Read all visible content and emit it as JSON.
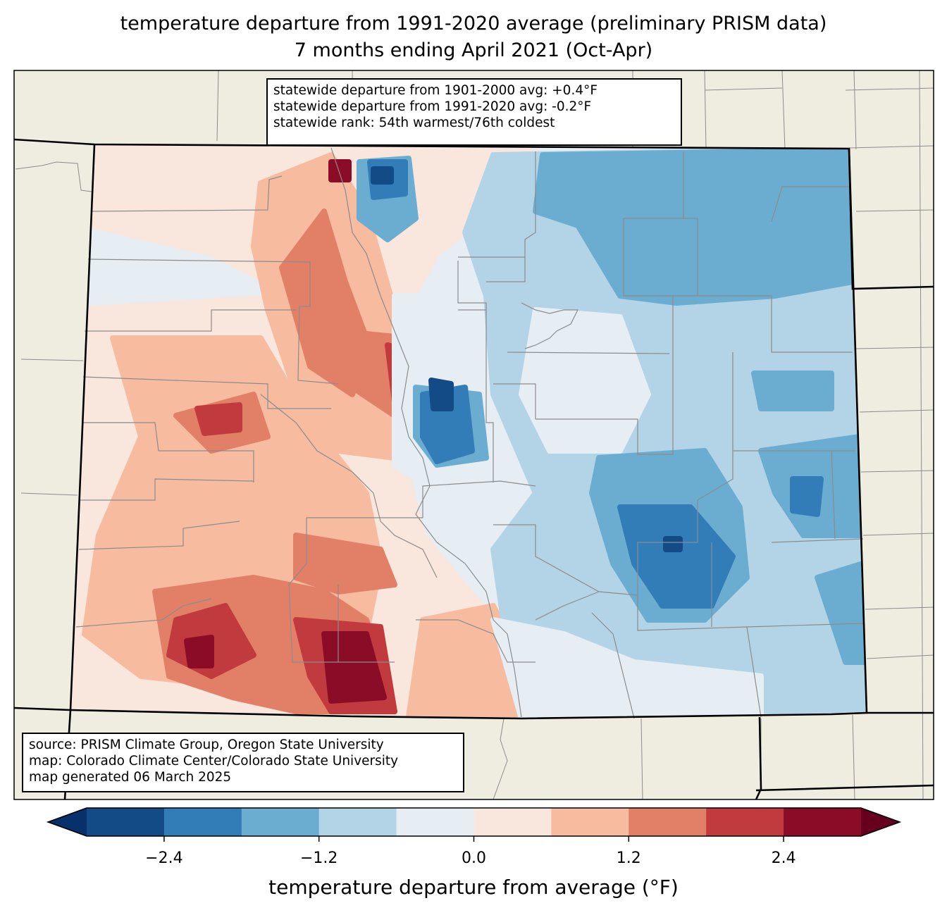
{
  "title": {
    "line1": "temperature departure from 1991-2020 average (preliminary PRISM data)",
    "line2": "7 months ending April 2021 (Oct-Apr)"
  },
  "stats_box": {
    "line1": "statewide departure from 1901-2000 avg: +0.4°F",
    "line2": "statewide departure from 1991-2020 avg: -0.2°F",
    "line3": "statewide rank: 54th warmest/76th coldest"
  },
  "source_box": {
    "line1": "source: PRISM Climate Group, Oregon State University",
    "line2": "map: Colorado Climate Center/Colorado State University",
    "line3": "map generated 06 March 2025"
  },
  "colorbar": {
    "label": "temperature departure from average (°F)",
    "bounds": [
      -3.0,
      -2.4,
      -1.8,
      -1.2,
      -0.6,
      0.0,
      0.6,
      1.2,
      1.8,
      2.4,
      3.0
    ],
    "ticks": [
      {
        "value": -2.4,
        "label": "−2.4"
      },
      {
        "value": -1.2,
        "label": "−1.2"
      },
      {
        "value": 0.0,
        "label": "0.0"
      },
      {
        "value": 1.2,
        "label": "1.2"
      },
      {
        "value": 2.4,
        "label": "2.4"
      }
    ],
    "colors": [
      "#134b87",
      "#327db7",
      "#6badd1",
      "#b3d4e7",
      "#e6eef4",
      "#f9e6dd",
      "#f7bba0",
      "#e27f67",
      "#c13a3d",
      "#8a0c27"
    ],
    "under_color": "#08306b",
    "over_color": "#67001f",
    "extend": "both"
  },
  "map_colors": {
    "land": "#efede0",
    "county_line": "#8c8c8c",
    "state_line": "#000000"
  }
}
